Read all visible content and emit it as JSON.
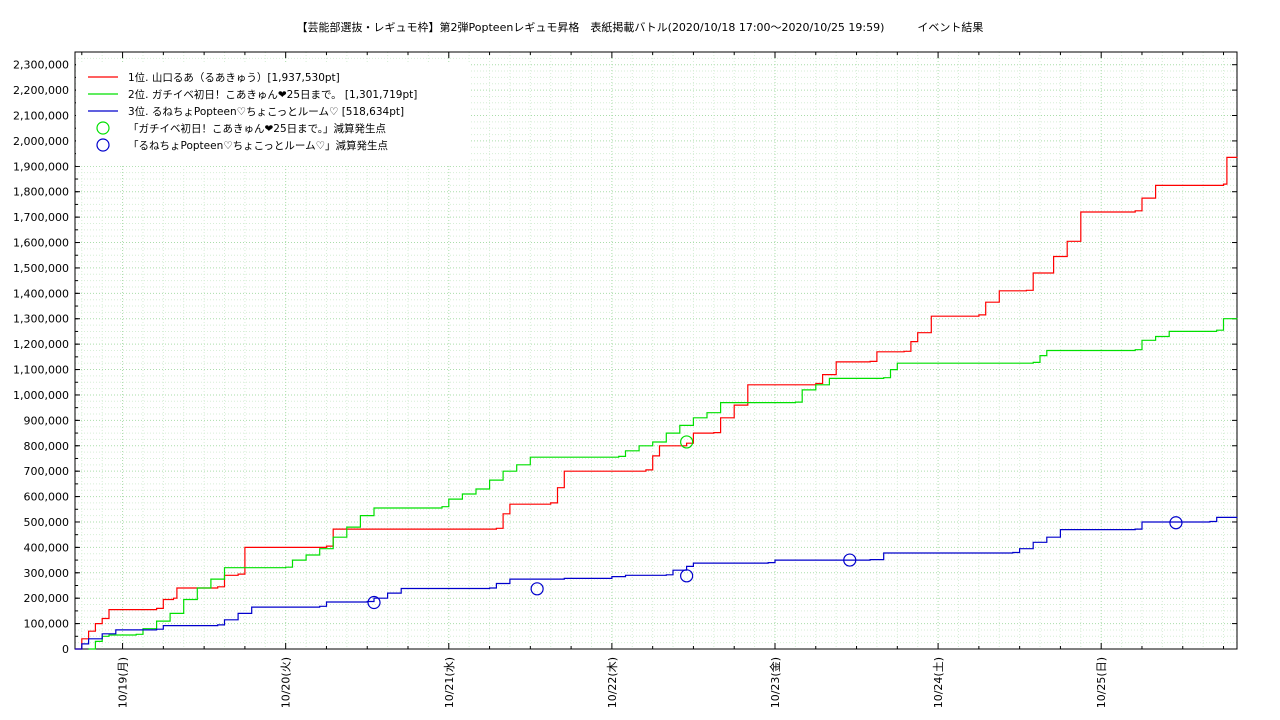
{
  "chart_data": {
    "type": "line",
    "title": "【芸能部選抜・レギュモ枠】第2弾Popteenレギュモ昇格　表紙掲載バトル(2020/10/18 17:00〜2020/10/25 19:59)　　　イベント結果",
    "xlabel": "",
    "ylabel": "",
    "xlim": [
      "2020-10-18 17:00",
      "2020-10-25 19:59"
    ],
    "ylim": [
      0,
      2350000
    ],
    "x_tick_labels": [
      "10/19(月)",
      "10/20(火)",
      "10/21(水)",
      "10/22(木)",
      "10/23(金)",
      "10/24(土)",
      "10/25(日)"
    ],
    "x_tick_dates": [
      "2020-10-19 00:00",
      "2020-10-20 00:00",
      "2020-10-21 00:00",
      "2020-10-22 00:00",
      "2020-10-23 00:00",
      "2020-10-24 00:00",
      "2020-10-25 00:00"
    ],
    "y_tick_labels": [
      "0",
      "100,000",
      "200,000",
      "300,000",
      "400,000",
      "500,000",
      "600,000",
      "700,000",
      "800,000",
      "900,000",
      "1,000,000",
      "1,100,000",
      "1,200,000",
      "1,300,000",
      "1,400,000",
      "1,500,000",
      "1,600,000",
      "1,700,000",
      "1,800,000",
      "1,900,000",
      "2,000,000",
      "2,100,000",
      "2,200,000",
      "2,300,000"
    ],
    "y_tick_values": [
      0,
      100000,
      200000,
      300000,
      400000,
      500000,
      600000,
      700000,
      800000,
      900000,
      1000000,
      1100000,
      1200000,
      1300000,
      1400000,
      1500000,
      1600000,
      1700000,
      1800000,
      1900000,
      2000000,
      2100000,
      2200000,
      2300000
    ],
    "grid": true,
    "legend_position": "top-left",
    "series": [
      {
        "name": "1位. 山口るあ（るあきゅう）[1,937,530pt]",
        "color": "#ff0000",
        "step": true,
        "points": [
          [
            "2020-10-18 17:00",
            0
          ],
          [
            "2020-10-18 18:00",
            40000
          ],
          [
            "2020-10-18 19:00",
            70000
          ],
          [
            "2020-10-18 20:00",
            100000
          ],
          [
            "2020-10-18 21:00",
            120000
          ],
          [
            "2020-10-18 22:00",
            155000
          ],
          [
            "2020-10-19 05:00",
            160000
          ],
          [
            "2020-10-19 06:00",
            195000
          ],
          [
            "2020-10-19 07:30",
            200000
          ],
          [
            "2020-10-19 08:00",
            240000
          ],
          [
            "2020-10-19 14:00",
            245000
          ],
          [
            "2020-10-19 15:00",
            290000
          ],
          [
            "2020-10-19 17:00",
            295000
          ],
          [
            "2020-10-19 18:00",
            400000
          ],
          [
            "2020-10-20 06:00",
            405000
          ],
          [
            "2020-10-20 07:00",
            472000
          ],
          [
            "2020-10-21 07:00",
            475000
          ],
          [
            "2020-10-21 08:00",
            532000
          ],
          [
            "2020-10-21 09:00",
            570000
          ],
          [
            "2020-10-21 15:00",
            575000
          ],
          [
            "2020-10-21 16:00",
            635000
          ],
          [
            "2020-10-21 17:00",
            700000
          ],
          [
            "2020-10-22 05:00",
            705000
          ],
          [
            "2020-10-22 06:00",
            760000
          ],
          [
            "2020-10-22 07:00",
            800000
          ],
          [
            "2020-10-22 11:00",
            810000
          ],
          [
            "2020-10-22 12:00",
            850000
          ],
          [
            "2020-10-22 15:00",
            852000
          ],
          [
            "2020-10-22 16:00",
            910000
          ],
          [
            "2020-10-22 18:00",
            960000
          ],
          [
            "2020-10-22 20:00",
            1040000
          ],
          [
            "2020-10-23 06:00",
            1045000
          ],
          [
            "2020-10-23 07:00",
            1080000
          ],
          [
            "2020-10-23 09:00",
            1130000
          ],
          [
            "2020-10-23 14:00",
            1132000
          ],
          [
            "2020-10-23 15:00",
            1170000
          ],
          [
            "2020-10-23 19:00",
            1172000
          ],
          [
            "2020-10-23 20:00",
            1210000
          ],
          [
            "2020-10-23 21:00",
            1245000
          ],
          [
            "2020-10-23 23:00",
            1310000
          ],
          [
            "2020-10-24 06:00",
            1315000
          ],
          [
            "2020-10-24 07:00",
            1365000
          ],
          [
            "2020-10-24 09:00",
            1410000
          ],
          [
            "2020-10-24 13:00",
            1412000
          ],
          [
            "2020-10-24 14:00",
            1480000
          ],
          [
            "2020-10-24 17:00",
            1545000
          ],
          [
            "2020-10-24 19:00",
            1605000
          ],
          [
            "2020-10-24 21:00",
            1720000
          ],
          [
            "2020-10-25 05:00",
            1725000
          ],
          [
            "2020-10-25 06:00",
            1775000
          ],
          [
            "2020-10-25 08:00",
            1825000
          ],
          [
            "2020-10-25 18:00",
            1830000
          ],
          [
            "2020-10-25 18:30",
            1935000
          ],
          [
            "2020-10-25 19:59",
            1937530
          ]
        ]
      },
      {
        "name": "2位. ガチイベ初日！こあきゅん❤25日まで。 [1,301,719pt]",
        "color": "#00e000",
        "step": true,
        "points": [
          [
            "2020-10-18 19:00",
            0
          ],
          [
            "2020-10-18 20:00",
            30000
          ],
          [
            "2020-10-18 21:00",
            50000
          ],
          [
            "2020-10-18 22:00",
            55000
          ],
          [
            "2020-10-19 02:00",
            58000
          ],
          [
            "2020-10-19 03:00",
            80000
          ],
          [
            "2020-10-19 05:00",
            110000
          ],
          [
            "2020-10-19 07:00",
            140000
          ],
          [
            "2020-10-19 09:00",
            195000
          ],
          [
            "2020-10-19 11:00",
            240000
          ],
          [
            "2020-10-19 13:00",
            275000
          ],
          [
            "2020-10-19 15:00",
            320000
          ],
          [
            "2020-10-20 00:00",
            322000
          ],
          [
            "2020-10-20 01:00",
            350000
          ],
          [
            "2020-10-20 03:00",
            370000
          ],
          [
            "2020-10-20 05:00",
            395000
          ],
          [
            "2020-10-20 07:00",
            440000
          ],
          [
            "2020-10-20 09:00",
            480000
          ],
          [
            "2020-10-20 11:00",
            525000
          ],
          [
            "2020-10-20 13:00",
            555000
          ],
          [
            "2020-10-20 23:00",
            560000
          ],
          [
            "2020-10-21 00:00",
            590000
          ],
          [
            "2020-10-21 02:00",
            610000
          ],
          [
            "2020-10-21 04:00",
            630000
          ],
          [
            "2020-10-21 06:00",
            665000
          ],
          [
            "2020-10-21 08:00",
            700000
          ],
          [
            "2020-10-21 10:00",
            725000
          ],
          [
            "2020-10-21 12:00",
            755000
          ],
          [
            "2020-10-22 01:00",
            758000
          ],
          [
            "2020-10-22 02:00",
            780000
          ],
          [
            "2020-10-22 04:00",
            800000
          ],
          [
            "2020-10-22 06:00",
            815000
          ],
          [
            "2020-10-22 08:00",
            850000
          ],
          [
            "2020-10-22 10:00",
            880000
          ],
          [
            "2020-10-22 12:00",
            910000
          ],
          [
            "2020-10-22 14:00",
            930000
          ],
          [
            "2020-10-22 16:00",
            970000
          ],
          [
            "2020-10-23 03:00",
            972000
          ],
          [
            "2020-10-23 04:00",
            1020000
          ],
          [
            "2020-10-23 06:00",
            1040000
          ],
          [
            "2020-10-23 08:00",
            1065000
          ],
          [
            "2020-10-23 16:00",
            1068000
          ],
          [
            "2020-10-23 17:00",
            1100000
          ],
          [
            "2020-10-23 18:00",
            1125000
          ],
          [
            "2020-10-24 14:00",
            1128000
          ],
          [
            "2020-10-24 15:00",
            1155000
          ],
          [
            "2020-10-24 16:00",
            1175000
          ],
          [
            "2020-10-25 05:00",
            1178000
          ],
          [
            "2020-10-25 06:00",
            1215000
          ],
          [
            "2020-10-25 08:00",
            1230000
          ],
          [
            "2020-10-25 10:00",
            1250000
          ],
          [
            "2020-10-25 17:00",
            1255000
          ],
          [
            "2020-10-25 18:00",
            1300000
          ],
          [
            "2020-10-25 19:59",
            1301719
          ]
        ]
      },
      {
        "name": "3位. るねちょPopteen♡ちょこっとルーム♡ [518,634pt]",
        "color": "#0000cc",
        "step": true,
        "points": [
          [
            "2020-10-18 17:00",
            0
          ],
          [
            "2020-10-18 18:00",
            20000
          ],
          [
            "2020-10-18 19:00",
            40000
          ],
          [
            "2020-10-18 21:00",
            60000
          ],
          [
            "2020-10-18 23:00",
            75000
          ],
          [
            "2020-10-19 05:00",
            78000
          ],
          [
            "2020-10-19 06:00",
            92000
          ],
          [
            "2020-10-19 14:00",
            95000
          ],
          [
            "2020-10-19 15:00",
            115000
          ],
          [
            "2020-10-19 17:00",
            140000
          ],
          [
            "2020-10-19 19:00",
            165000
          ],
          [
            "2020-10-20 05:00",
            168000
          ],
          [
            "2020-10-20 06:00",
            185000
          ],
          [
            "2020-10-20 12:00",
            187000
          ],
          [
            "2020-10-20 13:00",
            200000
          ],
          [
            "2020-10-20 15:00",
            220000
          ],
          [
            "2020-10-20 17:00",
            238000
          ],
          [
            "2020-10-21 06:00",
            240000
          ],
          [
            "2020-10-21 07:00",
            258000
          ],
          [
            "2020-10-21 09:00",
            275000
          ],
          [
            "2020-10-21 17:00",
            278000
          ],
          [
            "2020-10-22 00:00",
            285000
          ],
          [
            "2020-10-22 02:00",
            290000
          ],
          [
            "2020-10-22 08:00",
            292000
          ],
          [
            "2020-10-22 09:00",
            310000
          ],
          [
            "2020-10-22 11:00",
            325000
          ],
          [
            "2020-10-22 12:00",
            338000
          ],
          [
            "2020-10-22 23:00",
            340000
          ],
          [
            "2020-10-23 00:00",
            350000
          ],
          [
            "2020-10-23 14:00",
            352000
          ],
          [
            "2020-10-23 16:00",
            378000
          ],
          [
            "2020-10-24 11:00",
            380000
          ],
          [
            "2020-10-24 12:00",
            395000
          ],
          [
            "2020-10-24 14:00",
            420000
          ],
          [
            "2020-10-24 16:00",
            440000
          ],
          [
            "2020-10-24 18:00",
            470000
          ],
          [
            "2020-10-25 05:00",
            472000
          ],
          [
            "2020-10-25 06:00",
            500000
          ],
          [
            "2020-10-25 16:00",
            502000
          ],
          [
            "2020-10-25 17:00",
            518000
          ],
          [
            "2020-10-25 19:59",
            518634
          ]
        ]
      }
    ],
    "markers": [
      {
        "name": "「ガチイベ初日！こあきゅん❤25日まで。」減算発生点",
        "color": "#00e000",
        "points": [
          [
            "2020-10-22 11:00",
            815000
          ]
        ]
      },
      {
        "name": "「るねちょPopteen♡ちょこっとルーム♡」減算発生点",
        "color": "#0000cc",
        "points": [
          [
            "2020-10-20 13:00",
            183000
          ],
          [
            "2020-10-21 13:00",
            237000
          ],
          [
            "2020-10-22 11:00",
            288000
          ],
          [
            "2020-10-23 11:00",
            350000
          ],
          [
            "2020-10-25 11:00",
            497000
          ]
        ]
      }
    ]
  }
}
